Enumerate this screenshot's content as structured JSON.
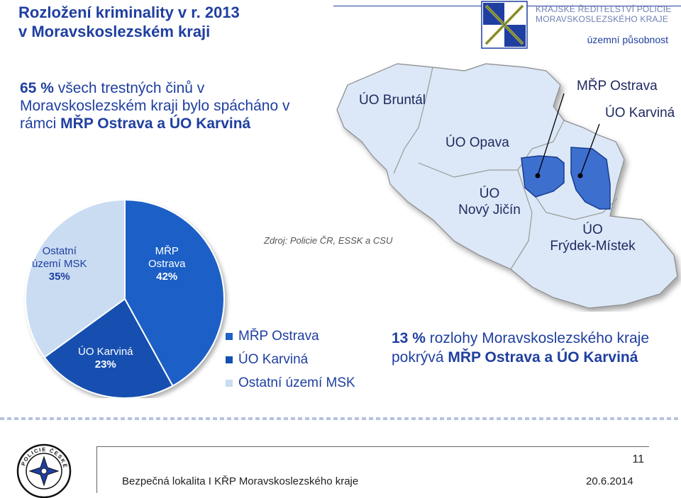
{
  "header": {
    "title_line1": "Rozložení kriminality v r. 2013",
    "title_line2": "v Moravskoslezském kraji",
    "org_line1": "KRAJSKÉ ŘEDITELSTVÍ POLICIE",
    "org_line2": "MORAVSKOSLEZSKÉHO KRAJE",
    "scope": "územní působnost"
  },
  "intro": {
    "lead_bold": "65 %",
    "text": " všech trestných činů v Moravskoslezském kraji bylo spácháno v rámci ",
    "bold_part": "MŘP Ostrava a ÚO Karviná"
  },
  "map": {
    "labels": {
      "bruntal": "ÚO Bruntál",
      "opava": "ÚO Opava",
      "ostrava": "MŘP Ostrava",
      "karvina": "ÚO Karviná",
      "novy_jicin_1": "ÚO",
      "novy_jicin_2": "Nový Jičín",
      "frydek_1": "ÚO",
      "frydek_2": "Frýdek-Místek"
    },
    "colors": {
      "region_fill": "#dce8f7",
      "region_stroke": "#8a8a8a",
      "highlight": "#3d6fcf",
      "highlight_dark": "#1a3b8f"
    }
  },
  "source": "Zdroj: Policie ČR, ESSK a CSU",
  "chart_data": {
    "type": "pie",
    "title": "",
    "slices": [
      {
        "name": "MŘP Ostrava",
        "label": "MŘP\nOstrava",
        "value": 42,
        "value_label": "42%",
        "color": "#1f5fc6"
      },
      {
        "name": "ÚO Karviná",
        "label": "ÚO Karviná",
        "value": 23,
        "value_label": "23%",
        "color": "#1550b0"
      },
      {
        "name": "Ostatní území MSK",
        "label": "Ostatní\núzemí MSK",
        "value": 35,
        "value_label": "35%",
        "color": "#c9dcf2"
      }
    ],
    "legend_placement": "right"
  },
  "pie_labels": {
    "ostrava_1": "MŘP",
    "ostrava_2": "Ostrava",
    "karvina": "ÚO Karviná",
    "other_1": "Ostatní",
    "other_2": "území MSK"
  },
  "legend": [
    {
      "label": "MŘP Ostrava",
      "color": "#1f5fc6"
    },
    {
      "label": "ÚO Karviná",
      "color": "#1550b0"
    },
    {
      "label": "Ostatní území MSK",
      "color": "#c9dcf2"
    }
  ],
  "highlight": {
    "lead_bold": "13 %",
    "text": " rozlohy Moravskoslezského kraje pokrývá ",
    "bold_part": "MŘP Ostrava a ÚO Karviná"
  },
  "footer": {
    "badge_text": "POLICIE ČESKÉ REPUBLIKY",
    "page_number": "11",
    "text": "Bezpečná lokalita I KŘP Moravskoslezského kraje",
    "date": "20.6.2014"
  }
}
